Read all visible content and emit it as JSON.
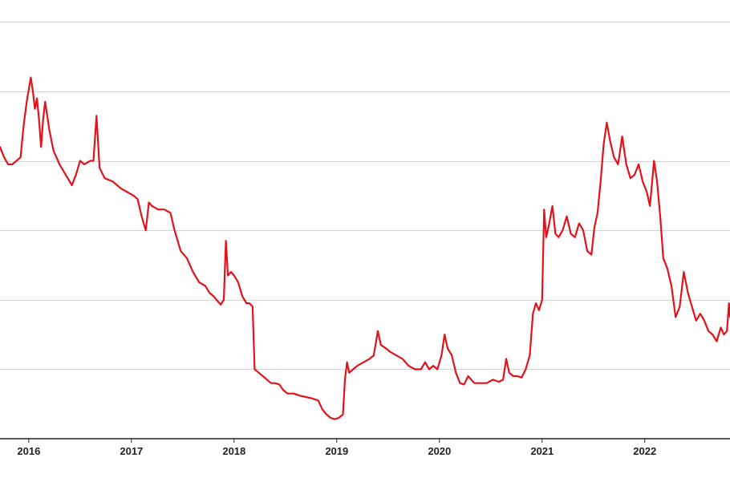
{
  "chart_data": {
    "type": "line",
    "title": "",
    "xlabel": "",
    "ylabel": "",
    "x_tick_labels": [
      "2016",
      "2017",
      "2018",
      "2019",
      "2020",
      "2021",
      "2022"
    ],
    "x_tick_values": [
      2016.0,
      2017.0,
      2018.0,
      2019.0,
      2020.0,
      2021.0,
      2022.0
    ],
    "xlim": [
      2015.72,
      2022.83
    ],
    "y_gridlines": [
      1,
      2,
      3,
      4,
      5,
      6
    ],
    "ylim": [
      0,
      6.2
    ],
    "grid": true,
    "legend": "none",
    "series": [
      {
        "color": "#e3121b",
        "points": [
          [
            2015.72,
            4.2
          ],
          [
            2015.76,
            4.05
          ],
          [
            2015.8,
            3.95
          ],
          [
            2015.84,
            3.95
          ],
          [
            2015.88,
            4.0
          ],
          [
            2015.92,
            4.05
          ],
          [
            2015.95,
            4.5
          ],
          [
            2015.98,
            4.85
          ],
          [
            2016.02,
            5.2
          ],
          [
            2016.04,
            5.0
          ],
          [
            2016.06,
            4.75
          ],
          [
            2016.08,
            4.9
          ],
          [
            2016.1,
            4.6
          ],
          [
            2016.12,
            4.2
          ],
          [
            2016.14,
            4.6
          ],
          [
            2016.16,
            4.85
          ],
          [
            2016.18,
            4.65
          ],
          [
            2016.2,
            4.45
          ],
          [
            2016.24,
            4.15
          ],
          [
            2016.3,
            3.95
          ],
          [
            2016.36,
            3.8
          ],
          [
            2016.42,
            3.65
          ],
          [
            2016.46,
            3.8
          ],
          [
            2016.5,
            4.0
          ],
          [
            2016.54,
            3.95
          ],
          [
            2016.6,
            4.0
          ],
          [
            2016.63,
            4.0
          ],
          [
            2016.66,
            4.65
          ],
          [
            2016.69,
            3.9
          ],
          [
            2016.74,
            3.75
          ],
          [
            2016.82,
            3.7
          ],
          [
            2016.9,
            3.6
          ],
          [
            2016.96,
            3.55
          ],
          [
            2017.02,
            3.5
          ],
          [
            2017.06,
            3.45
          ],
          [
            2017.1,
            3.2
          ],
          [
            2017.14,
            3.0
          ],
          [
            2017.17,
            3.4
          ],
          [
            2017.2,
            3.35
          ],
          [
            2017.26,
            3.3
          ],
          [
            2017.32,
            3.3
          ],
          [
            2017.38,
            3.25
          ],
          [
            2017.42,
            3.0
          ],
          [
            2017.48,
            2.7
          ],
          [
            2017.54,
            2.6
          ],
          [
            2017.6,
            2.4
          ],
          [
            2017.66,
            2.25
          ],
          [
            2017.72,
            2.2
          ],
          [
            2017.76,
            2.1
          ],
          [
            2017.8,
            2.05
          ],
          [
            2017.84,
            1.98
          ],
          [
            2017.87,
            1.93
          ],
          [
            2017.9,
            2.0
          ],
          [
            2017.92,
            2.85
          ],
          [
            2017.94,
            2.35
          ],
          [
            2017.97,
            2.4
          ],
          [
            2018.0,
            2.35
          ],
          [
            2018.04,
            2.25
          ],
          [
            2018.08,
            2.05
          ],
          [
            2018.12,
            1.95
          ],
          [
            2018.15,
            1.95
          ],
          [
            2018.18,
            1.9
          ],
          [
            2018.2,
            1.0
          ],
          [
            2018.24,
            0.95
          ],
          [
            2018.28,
            0.9
          ],
          [
            2018.32,
            0.85
          ],
          [
            2018.36,
            0.8
          ],
          [
            2018.4,
            0.8
          ],
          [
            2018.44,
            0.78
          ],
          [
            2018.48,
            0.7
          ],
          [
            2018.52,
            0.65
          ],
          [
            2018.58,
            0.65
          ],
          [
            2018.64,
            0.62
          ],
          [
            2018.7,
            0.6
          ],
          [
            2018.76,
            0.58
          ],
          [
            2018.82,
            0.55
          ],
          [
            2018.86,
            0.42
          ],
          [
            2018.9,
            0.35
          ],
          [
            2018.94,
            0.3
          ],
          [
            2018.98,
            0.28
          ],
          [
            2019.02,
            0.3
          ],
          [
            2019.06,
            0.35
          ],
          [
            2019.08,
            0.85
          ],
          [
            2019.1,
            1.1
          ],
          [
            2019.12,
            0.95
          ],
          [
            2019.16,
            1.0
          ],
          [
            2019.2,
            1.05
          ],
          [
            2019.26,
            1.1
          ],
          [
            2019.32,
            1.15
          ],
          [
            2019.36,
            1.2
          ],
          [
            2019.4,
            1.55
          ],
          [
            2019.43,
            1.35
          ],
          [
            2019.48,
            1.3
          ],
          [
            2019.52,
            1.25
          ],
          [
            2019.58,
            1.2
          ],
          [
            2019.64,
            1.15
          ],
          [
            2019.7,
            1.05
          ],
          [
            2019.76,
            1.0
          ],
          [
            2019.82,
            1.0
          ],
          [
            2019.86,
            1.1
          ],
          [
            2019.9,
            1.0
          ],
          [
            2019.94,
            1.05
          ],
          [
            2019.98,
            1.0
          ],
          [
            2020.02,
            1.2
          ],
          [
            2020.05,
            1.5
          ],
          [
            2020.08,
            1.3
          ],
          [
            2020.12,
            1.2
          ],
          [
            2020.16,
            0.95
          ],
          [
            2020.2,
            0.8
          ],
          [
            2020.24,
            0.78
          ],
          [
            2020.28,
            0.9
          ],
          [
            2020.34,
            0.8
          ],
          [
            2020.4,
            0.8
          ],
          [
            2020.46,
            0.8
          ],
          [
            2020.52,
            0.85
          ],
          [
            2020.58,
            0.82
          ],
          [
            2020.62,
            0.85
          ],
          [
            2020.65,
            1.15
          ],
          [
            2020.68,
            0.95
          ],
          [
            2020.72,
            0.9
          ],
          [
            2020.76,
            0.9
          ],
          [
            2020.8,
            0.88
          ],
          [
            2020.84,
            1.0
          ],
          [
            2020.88,
            1.2
          ],
          [
            2020.91,
            1.8
          ],
          [
            2020.94,
            1.95
          ],
          [
            2020.97,
            1.85
          ],
          [
            2021.0,
            2.0
          ],
          [
            2021.02,
            3.3
          ],
          [
            2021.04,
            2.9
          ],
          [
            2021.07,
            3.1
          ],
          [
            2021.1,
            3.35
          ],
          [
            2021.13,
            2.95
          ],
          [
            2021.16,
            2.9
          ],
          [
            2021.2,
            3.0
          ],
          [
            2021.24,
            3.2
          ],
          [
            2021.28,
            2.95
          ],
          [
            2021.32,
            2.9
          ],
          [
            2021.36,
            3.1
          ],
          [
            2021.4,
            3.0
          ],
          [
            2021.44,
            2.7
          ],
          [
            2021.48,
            2.65
          ],
          [
            2021.51,
            3.05
          ],
          [
            2021.54,
            3.25
          ],
          [
            2021.57,
            3.7
          ],
          [
            2021.6,
            4.25
          ],
          [
            2021.63,
            4.55
          ],
          [
            2021.66,
            4.3
          ],
          [
            2021.7,
            4.05
          ],
          [
            2021.74,
            3.95
          ],
          [
            2021.78,
            4.35
          ],
          [
            2021.82,
            3.95
          ],
          [
            2021.86,
            3.75
          ],
          [
            2021.9,
            3.8
          ],
          [
            2021.94,
            3.95
          ],
          [
            2021.98,
            3.7
          ],
          [
            2022.02,
            3.55
          ],
          [
            2022.05,
            3.35
          ],
          [
            2022.09,
            4.0
          ],
          [
            2022.12,
            3.7
          ],
          [
            2022.15,
            3.2
          ],
          [
            2022.18,
            2.6
          ],
          [
            2022.22,
            2.45
          ],
          [
            2022.26,
            2.2
          ],
          [
            2022.3,
            1.75
          ],
          [
            2022.34,
            1.9
          ],
          [
            2022.38,
            2.4
          ],
          [
            2022.42,
            2.1
          ],
          [
            2022.46,
            1.9
          ],
          [
            2022.5,
            1.7
          ],
          [
            2022.54,
            1.8
          ],
          [
            2022.58,
            1.7
          ],
          [
            2022.62,
            1.55
          ],
          [
            2022.66,
            1.5
          ],
          [
            2022.7,
            1.4
          ],
          [
            2022.74,
            1.6
          ],
          [
            2022.77,
            1.5
          ],
          [
            2022.8,
            1.55
          ],
          [
            2022.82,
            1.95
          ],
          [
            2022.83,
            1.75
          ]
        ]
      }
    ]
  }
}
